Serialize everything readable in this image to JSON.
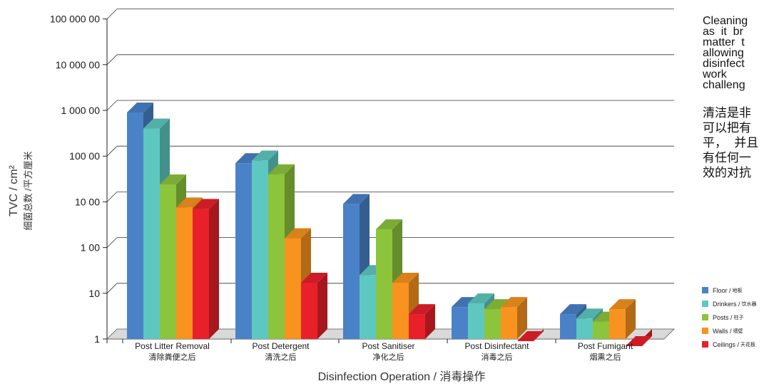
{
  "chart_data": {
    "type": "bar",
    "subtype": "grouped-3d-log",
    "ylabel": "TVC / cm²",
    "ylabel_zh": "细菌总数 /平方厘米",
    "xlabel": "Disinfection Operation / 消毒操作",
    "yscale": "log",
    "ylim": [
      1,
      100000
    ],
    "ytick_labels": [
      "1",
      "10",
      "1 00",
      "10 00",
      "100 00",
      "1 000 00",
      "10 000 00",
      "100 000 00"
    ],
    "categories": [
      {
        "en": "Post Litter Removal",
        "zh": "清除粪便之后"
      },
      {
        "en": "Post Detergent",
        "zh": "清洗之后"
      },
      {
        "en": "Post Sanitiser",
        "zh": "净化之后"
      },
      {
        "en": "Post Disinfectant",
        "zh": "消毒之后"
      },
      {
        "en": "Post Fumigant",
        "zh": "烟熏之后"
      }
    ],
    "series": [
      {
        "name": "Floor",
        "name_zh": "地板",
        "color": "#4a82c8",
        "values": [
          90000,
          7000,
          900,
          5,
          3.5
        ]
      },
      {
        "name": "Drinkers",
        "name_zh": "饮水器",
        "color": "#5ec8c0",
        "values": [
          40000,
          8000,
          25,
          6,
          2.8
        ]
      },
      {
        "name": "Posts",
        "name_zh": "柱子",
        "color": "#8cc43c",
        "values": [
          2400,
          4000,
          250,
          4.5,
          2.4
        ]
      },
      {
        "name": "Walls",
        "name_zh": "墙壁",
        "color": "#f7931e",
        "values": [
          750,
          160,
          17,
          5,
          4.5
        ]
      },
      {
        "name": "Ceilings",
        "name_zh": "天花板",
        "color": "#e8202a",
        "values": [
          700,
          17,
          3.5,
          0.9,
          0.7
        ]
      }
    ],
    "grid": true,
    "legend_position": "right-bottom"
  },
  "side_text": {
    "en_lines": [
      "Cleaning",
      "as  it  br",
      "matter  t",
      "allowing",
      "disinfect",
      "work",
      "challeng"
    ],
    "zh_lines": [
      "清洁是非",
      "可以把有",
      "平， 并且",
      "有任何一",
      "效的对抗"
    ]
  }
}
